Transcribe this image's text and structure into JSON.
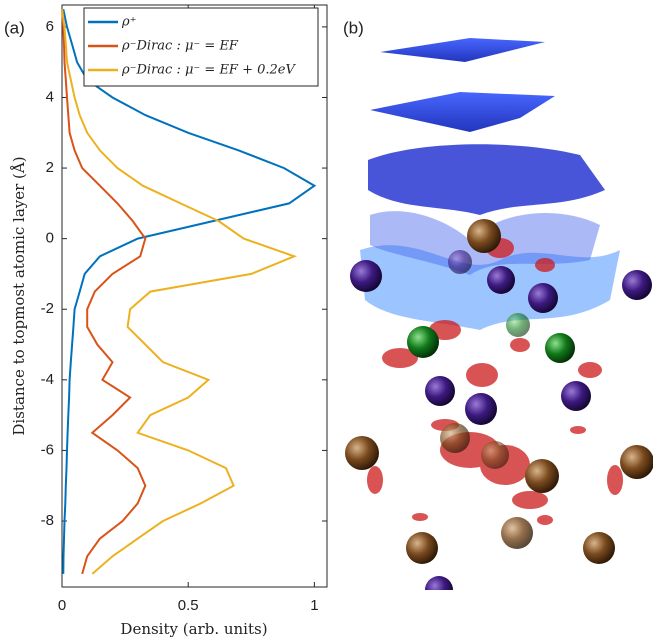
{
  "chart_data": {
    "type": "line",
    "orientation": "vertical",
    "panel_labels": [
      "(a)",
      "(b)"
    ],
    "xlabel": "Density (arb. units)",
    "ylabel": "Distance to topmost atomic layer (Å)",
    "y": [
      6.5,
      6,
      5.5,
      5,
      4.5,
      4,
      3.5,
      3,
      2.5,
      2,
      1.5,
      1,
      0.5,
      0,
      -0.5,
      -1,
      -1.5,
      -2,
      -2.5,
      -3,
      -3.5,
      -4,
      -4.5,
      -5,
      -5.5,
      -6,
      -6.5,
      -7,
      -7.5,
      -8,
      -8.5,
      -9,
      -9.5
    ],
    "series": [
      {
        "name": "ρ⁺",
        "color": "#0072bd",
        "values": [
          0.005,
          0.02,
          0.04,
          0.06,
          0.1,
          0.2,
          0.33,
          0.5,
          0.7,
          0.88,
          1.0,
          0.9,
          0.6,
          0.3,
          0.15,
          0.09,
          0.07,
          0.05,
          0.045,
          0.04,
          0.035,
          0.03,
          0.028,
          0.025,
          0.022,
          0.02,
          0.018,
          0.015,
          0.013,
          0.01,
          0.008,
          0.006,
          0.005
        ]
      },
      {
        "name": "ρ⁻Dirac : μ⁻ = EF",
        "color": "#d95319",
        "values": [
          0,
          0.005,
          0.008,
          0.01,
          0.015,
          0.02,
          0.025,
          0.03,
          0.05,
          0.08,
          0.15,
          0.22,
          0.28,
          0.33,
          0.31,
          0.2,
          0.13,
          0.1,
          0.1,
          0.14,
          0.2,
          0.16,
          0.27,
          0.2,
          0.12,
          0.22,
          0.3,
          0.33,
          0.3,
          0.24,
          0.15,
          0.1,
          0.08
        ]
      },
      {
        "name": "ρ⁻Dirac : μ⁻ = EF + 0.2eV",
        "color": "#edb120",
        "values": [
          0,
          0.01,
          0.015,
          0.02,
          0.035,
          0.05,
          0.07,
          0.1,
          0.15,
          0.22,
          0.32,
          0.47,
          0.62,
          0.72,
          0.92,
          0.75,
          0.35,
          0.27,
          0.26,
          0.33,
          0.4,
          0.58,
          0.5,
          0.35,
          0.3,
          0.5,
          0.65,
          0.68,
          0.55,
          0.4,
          0.3,
          0.2,
          0.12
        ]
      }
    ],
    "xlim": [
      0,
      1.05
    ],
    "xticks": [
      0,
      0.5,
      1
    ],
    "ylim": [
      -9.87,
      6.62
    ],
    "yticks": [
      6,
      4,
      2,
      0,
      -2,
      -4,
      -6,
      -8
    ],
    "legend": "upper right"
  }
}
